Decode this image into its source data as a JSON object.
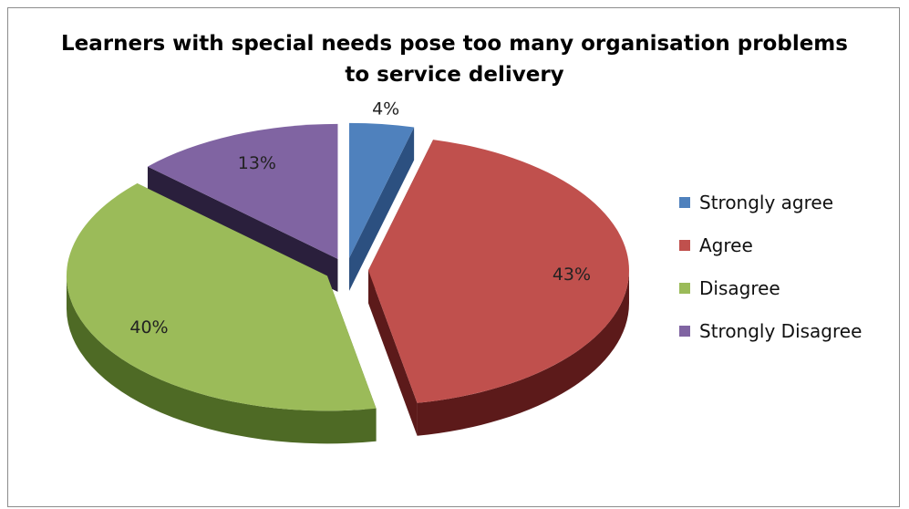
{
  "chart_data": {
    "type": "pie",
    "title": "Learners with special needs pose too many organisation problems to service delivery",
    "title_lines": [
      "Learners with special needs pose too many organisation problems",
      "to service delivery"
    ],
    "legend_position": "right",
    "exploded": true,
    "three_d": true,
    "categories": [
      "Strongly agree",
      "Agree",
      "Disagree",
      "Strongly Disagree"
    ],
    "values": [
      4,
      43,
      40,
      13
    ],
    "data_labels": [
      "4%",
      "43%",
      "40%",
      "13%"
    ],
    "colors": [
      "#4f81bd",
      "#c0504d",
      "#9bbb59",
      "#8064a2"
    ],
    "side_colors": [
      "#2c5080",
      "#5c1a1a",
      "#4e6a25",
      "#2a1f3c"
    ]
  }
}
